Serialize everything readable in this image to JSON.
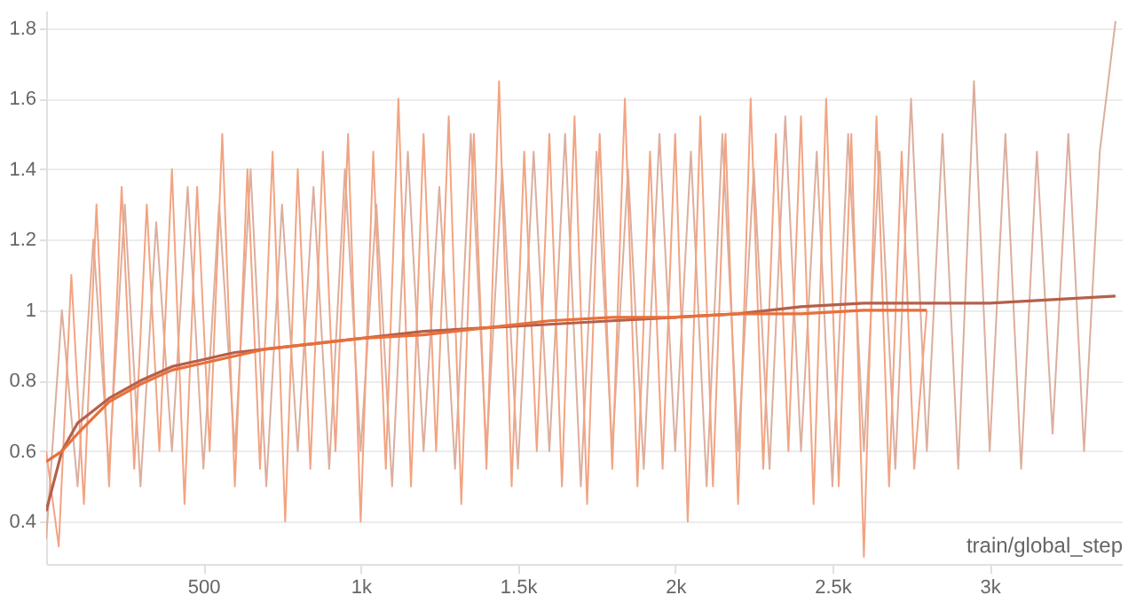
{
  "chart_data": {
    "type": "line",
    "xlabel": "train/global_step",
    "xlim": [
      0,
      3420
    ],
    "ylim": [
      0.28,
      1.85
    ],
    "xticks": [
      {
        "value": 500,
        "label": "500"
      },
      {
        "value": 1000,
        "label": "1k"
      },
      {
        "value": 1500,
        "label": "1.5k"
      },
      {
        "value": 2000,
        "label": "2k"
      },
      {
        "value": 2500,
        "label": "2.5k"
      },
      {
        "value": 3000,
        "label": "3k"
      }
    ],
    "yticks": [
      0.4,
      0.6,
      0.8,
      1,
      1.2,
      1.4,
      1.6,
      1.8
    ],
    "grid": "y",
    "marker": "none",
    "line_style": "solid",
    "series": [
      {
        "color": "#dcae9e",
        "x": [
          0,
          50,
          100,
          150,
          200,
          250,
          300,
          350,
          400,
          450,
          500,
          550,
          600,
          650,
          700,
          750,
          800,
          850,
          900,
          950,
          1000,
          1050,
          1100,
          1150,
          1200,
          1250,
          1300,
          1350,
          1400,
          1450,
          1500,
          1550,
          1600,
          1650,
          1700,
          1750,
          1800,
          1850,
          1900,
          1950,
          2000,
          2050,
          2100,
          2150,
          2200,
          2250,
          2300,
          2350,
          2400,
          2450,
          2500,
          2550,
          2600,
          2650,
          2700,
          2750,
          2800,
          2850,
          2900,
          2950,
          3000,
          3050,
          3100,
          3150,
          3200,
          3250,
          3300,
          3350,
          3400
        ],
        "values": [
          0.35,
          1.0,
          0.5,
          1.2,
          0.55,
          1.3,
          0.5,
          1.25,
          0.6,
          1.35,
          0.55,
          1.3,
          0.6,
          1.4,
          0.5,
          1.3,
          0.6,
          1.35,
          0.55,
          1.4,
          0.6,
          1.3,
          0.5,
          1.45,
          0.6,
          1.35,
          0.55,
          1.5,
          0.6,
          1.4,
          0.55,
          1.45,
          0.6,
          1.5,
          0.5,
          1.45,
          0.6,
          1.4,
          0.55,
          1.5,
          0.6,
          1.45,
          0.5,
          1.5,
          0.6,
          1.4,
          0.55,
          1.55,
          0.6,
          1.45,
          0.5,
          1.5,
          0.6,
          1.45,
          0.55,
          1.6,
          0.6,
          1.5,
          0.55,
          1.65,
          0.6,
          1.5,
          0.55,
          1.45,
          0.65,
          1.5,
          0.6,
          1.45,
          1.82
        ]
      },
      {
        "color": "#f2a482",
        "x": [
          0,
          40,
          80,
          120,
          160,
          200,
          240,
          280,
          320,
          360,
          400,
          440,
          480,
          520,
          560,
          600,
          640,
          680,
          720,
          760,
          800,
          840,
          880,
          920,
          960,
          1000,
          1040,
          1080,
          1120,
          1160,
          1200,
          1240,
          1280,
          1320,
          1360,
          1400,
          1440,
          1480,
          1520,
          1560,
          1600,
          1640,
          1680,
          1720,
          1760,
          1800,
          1840,
          1880,
          1920,
          1960,
          2000,
          2040,
          2080,
          2120,
          2160,
          2200,
          2240,
          2280,
          2320,
          2360,
          2400,
          2440,
          2480,
          2520,
          2560,
          2600,
          2640,
          2680,
          2720,
          2760,
          2800
        ],
        "values": [
          0.6,
          0.33,
          1.1,
          0.45,
          1.3,
          0.5,
          1.35,
          0.55,
          1.3,
          0.6,
          1.4,
          0.45,
          1.35,
          0.6,
          1.5,
          0.5,
          1.4,
          0.55,
          1.45,
          0.4,
          1.4,
          0.55,
          1.45,
          0.6,
          1.5,
          0.4,
          1.45,
          0.55,
          1.6,
          0.5,
          1.5,
          0.6,
          1.55,
          0.45,
          1.5,
          0.55,
          1.65,
          0.5,
          1.45,
          0.6,
          1.5,
          0.5,
          1.55,
          0.45,
          1.5,
          0.55,
          1.6,
          0.5,
          1.45,
          0.55,
          1.5,
          0.4,
          1.55,
          0.5,
          1.5,
          0.45,
          1.6,
          0.55,
          1.5,
          0.6,
          1.55,
          0.45,
          1.6,
          0.5,
          1.5,
          0.3,
          1.55,
          0.5,
          1.45,
          0.55,
          1.0
        ]
      },
      {
        "color": "#b5604a",
        "x": [
          0,
          50,
          100,
          200,
          300,
          400,
          500,
          600,
          700,
          800,
          1000,
          1200,
          1400,
          1600,
          1800,
          2000,
          2200,
          2400,
          2600,
          2800,
          3000,
          3200,
          3400
        ],
        "values": [
          0.43,
          0.6,
          0.68,
          0.75,
          0.8,
          0.84,
          0.86,
          0.88,
          0.89,
          0.9,
          0.92,
          0.94,
          0.95,
          0.96,
          0.97,
          0.98,
          0.99,
          1.01,
          1.02,
          1.02,
          1.02,
          1.03,
          1.04
        ]
      },
      {
        "color": "#e8703a",
        "x": [
          0,
          50,
          100,
          200,
          300,
          400,
          500,
          600,
          700,
          800,
          1000,
          1200,
          1400,
          1600,
          1800,
          2000,
          2200,
          2400,
          2600,
          2800
        ],
        "values": [
          0.57,
          0.6,
          0.65,
          0.74,
          0.79,
          0.83,
          0.85,
          0.87,
          0.89,
          0.9,
          0.92,
          0.93,
          0.95,
          0.97,
          0.98,
          0.98,
          0.99,
          0.99,
          1.0,
          1.0
        ]
      }
    ]
  }
}
